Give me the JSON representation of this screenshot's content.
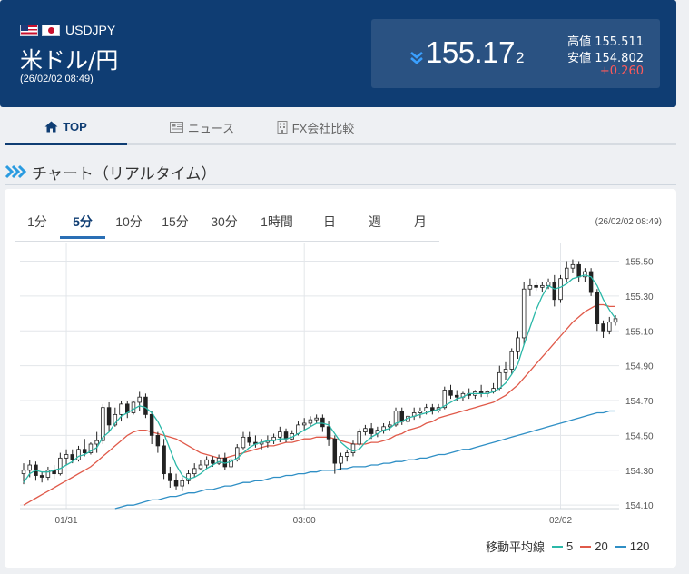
{
  "header": {
    "pair_code": "USDJPY",
    "pair_name": "米ドル/円",
    "datetime": "(26/02/02 08:49)",
    "price_main": "155.17",
    "price_small": "2",
    "high_label": "高値",
    "high_value": "155.511",
    "low_label": "安値",
    "low_value": "154.802",
    "change": "+0.260"
  },
  "tabs": {
    "top": "TOP",
    "news": "ニュース",
    "fx": "FX会社比較"
  },
  "section": {
    "title": "チャート（リアルタイム）"
  },
  "periods": [
    "1分",
    "5分",
    "10分",
    "15分",
    "30分",
    "1時間",
    "日",
    "週",
    "月"
  ],
  "chart_time": "(26/02/02 08:49)",
  "legend": {
    "label": "移動平均線",
    "ma5": "5",
    "ma20": "20",
    "ma120": "120"
  },
  "colors": {
    "header_bg": "#0f3d73",
    "price_box": "#2a5282",
    "change_red": "#ff5a5a",
    "ma5": "#2bb8a8",
    "ma20": "#e05a4a",
    "ma120": "#2f8fc5"
  },
  "chart_data": {
    "type": "candlestick",
    "y_ticks": [
      "155.50",
      "155.30",
      "155.10",
      "154.90",
      "154.70",
      "154.50",
      "154.30",
      "154.10"
    ],
    "x_ticks": [
      "01/31",
      "03:00",
      "02/02"
    ],
    "ylim": [
      154.08,
      155.56
    ],
    "ohlc": [
      [
        154.28,
        154.34,
        154.22,
        154.3
      ],
      [
        154.3,
        154.36,
        154.26,
        154.33
      ],
      [
        154.33,
        154.35,
        154.24,
        154.27
      ],
      [
        154.27,
        154.29,
        154.23,
        154.26
      ],
      [
        154.26,
        154.32,
        154.24,
        154.3
      ],
      [
        154.3,
        154.33,
        154.25,
        154.28
      ],
      [
        154.28,
        154.4,
        154.27,
        154.37
      ],
      [
        154.37,
        154.42,
        154.33,
        154.39
      ],
      [
        154.39,
        154.42,
        154.34,
        154.36
      ],
      [
        154.36,
        154.44,
        154.35,
        154.42
      ],
      [
        154.42,
        154.48,
        154.38,
        154.4
      ],
      [
        154.4,
        154.46,
        154.39,
        154.45
      ],
      [
        154.45,
        154.52,
        154.4,
        154.47
      ],
      [
        154.47,
        154.68,
        154.45,
        154.66
      ],
      [
        154.66,
        154.69,
        154.52,
        154.56
      ],
      [
        154.56,
        154.66,
        154.55,
        154.62
      ],
      [
        154.62,
        154.7,
        154.58,
        154.68
      ],
      [
        154.68,
        154.7,
        154.6,
        154.63
      ],
      [
        154.63,
        154.7,
        154.62,
        154.69
      ],
      [
        154.69,
        154.75,
        154.64,
        154.72
      ],
      [
        154.72,
        154.74,
        154.6,
        154.62
      ],
      [
        154.62,
        154.64,
        154.45,
        154.5
      ],
      [
        154.5,
        154.52,
        154.4,
        154.44
      ],
      [
        154.44,
        154.48,
        154.25,
        154.28
      ],
      [
        154.28,
        154.32,
        154.2,
        154.24
      ],
      [
        154.24,
        154.28,
        154.19,
        154.21
      ],
      [
        154.21,
        154.26,
        154.18,
        154.24
      ],
      [
        154.24,
        154.3,
        154.22,
        154.28
      ],
      [
        154.28,
        154.34,
        154.26,
        154.31
      ],
      [
        154.31,
        154.36,
        154.3,
        154.33
      ],
      [
        154.33,
        154.38,
        154.31,
        154.36
      ],
      [
        154.36,
        154.38,
        154.32,
        154.34
      ],
      [
        154.34,
        154.39,
        154.33,
        154.37
      ],
      [
        154.37,
        154.4,
        154.3,
        154.32
      ],
      [
        154.32,
        154.38,
        154.31,
        154.36
      ],
      [
        154.36,
        154.45,
        154.35,
        154.43
      ],
      [
        154.43,
        154.52,
        154.42,
        154.49
      ],
      [
        154.49,
        154.52,
        154.44,
        154.46
      ],
      [
        154.46,
        154.5,
        154.43,
        154.45
      ],
      [
        154.45,
        154.48,
        154.42,
        154.46
      ],
      [
        154.46,
        154.5,
        154.43,
        154.47
      ],
      [
        154.47,
        154.51,
        154.45,
        154.49
      ],
      [
        154.49,
        154.55,
        154.46,
        154.52
      ],
      [
        154.52,
        154.54,
        154.46,
        154.48
      ],
      [
        154.48,
        154.53,
        154.47,
        154.51
      ],
      [
        154.51,
        154.58,
        154.5,
        154.56
      ],
      [
        154.56,
        154.6,
        154.53,
        154.57
      ],
      [
        154.57,
        154.61,
        154.55,
        154.59
      ],
      [
        154.59,
        154.62,
        154.57,
        154.6
      ],
      [
        154.6,
        154.62,
        154.52,
        154.55
      ],
      [
        154.55,
        154.58,
        154.44,
        154.48
      ],
      [
        154.48,
        154.5,
        154.28,
        154.34
      ],
      [
        154.34,
        154.4,
        154.3,
        154.38
      ],
      [
        154.38,
        154.42,
        154.35,
        154.4
      ],
      [
        154.4,
        154.47,
        154.38,
        154.45
      ],
      [
        154.45,
        154.54,
        154.44,
        154.52
      ],
      [
        154.52,
        154.56,
        154.5,
        154.54
      ],
      [
        154.54,
        154.57,
        154.48,
        154.51
      ],
      [
        154.51,
        154.55,
        154.49,
        154.53
      ],
      [
        154.53,
        154.57,
        154.51,
        154.55
      ],
      [
        154.55,
        154.58,
        154.53,
        154.56
      ],
      [
        154.56,
        154.66,
        154.55,
        154.64
      ],
      [
        154.64,
        154.66,
        154.56,
        154.58
      ],
      [
        154.58,
        154.62,
        154.56,
        154.61
      ],
      [
        154.61,
        154.66,
        154.59,
        154.63
      ],
      [
        154.63,
        154.66,
        154.6,
        154.64
      ],
      [
        154.64,
        154.68,
        154.62,
        154.66
      ],
      [
        154.66,
        154.68,
        154.62,
        154.64
      ],
      [
        154.64,
        154.68,
        154.63,
        154.66
      ],
      [
        154.66,
        154.78,
        154.65,
        154.76
      ],
      [
        154.76,
        154.79,
        154.71,
        154.73
      ],
      [
        154.73,
        154.76,
        154.7,
        154.72
      ],
      [
        154.72,
        154.75,
        154.7,
        154.74
      ],
      [
        154.74,
        154.77,
        154.71,
        154.73
      ],
      [
        154.73,
        154.76,
        154.71,
        154.75
      ],
      [
        154.75,
        154.79,
        154.72,
        154.74
      ],
      [
        154.74,
        154.76,
        154.72,
        154.75
      ],
      [
        154.75,
        154.8,
        154.74,
        154.77
      ],
      [
        154.77,
        154.9,
        154.76,
        154.86
      ],
      [
        154.86,
        154.92,
        154.82,
        154.88
      ],
      [
        154.88,
        155.0,
        154.85,
        154.98
      ],
      [
        154.98,
        155.1,
        154.94,
        155.06
      ],
      [
        155.06,
        155.38,
        155.02,
        155.34
      ],
      [
        155.34,
        155.4,
        155.3,
        155.36
      ],
      [
        155.36,
        155.38,
        155.33,
        155.35
      ],
      [
        155.35,
        155.38,
        155.32,
        155.36
      ],
      [
        155.36,
        155.4,
        155.34,
        155.38
      ],
      [
        155.38,
        155.42,
        155.24,
        155.28
      ],
      [
        155.28,
        155.42,
        155.26,
        155.4
      ],
      [
        155.4,
        155.5,
        155.38,
        155.46
      ],
      [
        155.46,
        155.51,
        155.43,
        155.48
      ],
      [
        155.48,
        155.5,
        155.38,
        155.41
      ],
      [
        155.41,
        155.46,
        155.38,
        155.44
      ],
      [
        155.44,
        155.46,
        155.3,
        155.32
      ],
      [
        155.32,
        155.34,
        155.1,
        155.14
      ],
      [
        155.14,
        155.16,
        155.06,
        155.1
      ],
      [
        155.1,
        155.18,
        155.08,
        155.15
      ],
      [
        155.15,
        155.19,
        155.13,
        155.17
      ]
    ],
    "ma5": [
      154.23,
      154.28,
      154.3,
      154.29,
      154.29,
      154.3,
      154.31,
      154.33,
      154.35,
      154.38,
      154.39,
      154.41,
      154.43,
      154.49,
      154.52,
      154.57,
      154.61,
      154.63,
      154.65,
      154.67,
      154.66,
      154.63,
      154.58,
      154.51,
      154.42,
      154.33,
      154.27,
      154.25,
      154.26,
      154.28,
      154.31,
      154.33,
      154.35,
      154.34,
      154.35,
      154.37,
      154.4,
      154.43,
      154.45,
      154.46,
      154.47,
      154.47,
      154.48,
      154.48,
      154.49,
      154.51,
      154.53,
      154.55,
      154.57,
      154.57,
      154.56,
      154.51,
      154.46,
      154.43,
      154.41,
      154.42,
      154.46,
      154.49,
      154.51,
      154.53,
      154.54,
      154.57,
      154.58,
      154.6,
      154.61,
      154.62,
      154.63,
      154.64,
      154.65,
      154.67,
      154.69,
      154.71,
      154.72,
      154.74,
      154.74,
      154.74,
      154.74,
      154.75,
      154.77,
      154.8,
      154.85,
      154.91,
      155.02,
      155.12,
      155.22,
      155.3,
      155.36,
      155.34,
      155.35,
      155.37,
      155.4,
      155.41,
      155.42,
      155.41,
      155.36,
      155.28,
      155.22,
      155.17
    ],
    "ma20": [
      154.1,
      154.12,
      154.14,
      154.16,
      154.18,
      154.2,
      154.22,
      154.24,
      154.26,
      154.28,
      154.3,
      154.32,
      154.35,
      154.38,
      154.41,
      154.44,
      154.47,
      154.5,
      154.52,
      154.53,
      154.53,
      154.52,
      154.51,
      154.5,
      154.49,
      154.48,
      154.46,
      154.44,
      154.42,
      154.4,
      154.39,
      154.38,
      154.37,
      154.37,
      154.38,
      154.39,
      154.4,
      154.41,
      154.42,
      154.43,
      154.44,
      154.44,
      154.45,
      154.46,
      154.46,
      154.47,
      154.48,
      154.48,
      154.49,
      154.49,
      154.49,
      154.48,
      154.47,
      154.46,
      154.45,
      154.45,
      154.45,
      154.46,
      154.46,
      154.47,
      154.48,
      154.5,
      154.51,
      154.53,
      154.54,
      154.55,
      154.57,
      154.58,
      154.6,
      154.61,
      154.62,
      154.63,
      154.64,
      154.65,
      154.66,
      154.67,
      154.68,
      154.69,
      154.71,
      154.73,
      154.76,
      154.79,
      154.83,
      154.87,
      154.91,
      154.95,
      154.99,
      155.03,
      155.07,
      155.11,
      155.15,
      155.18,
      155.21,
      155.23,
      155.25,
      155.25,
      155.24,
      155.24
    ],
    "ma120": [
      null,
      null,
      null,
      null,
      null,
      null,
      null,
      null,
      null,
      null,
      null,
      null,
      null,
      null,
      null,
      154.08,
      154.09,
      154.1,
      154.1,
      154.11,
      154.12,
      154.13,
      154.13,
      154.14,
      154.15,
      154.15,
      154.16,
      154.17,
      154.17,
      154.18,
      154.19,
      154.19,
      154.2,
      154.21,
      154.21,
      154.22,
      154.23,
      154.23,
      154.24,
      154.24,
      154.25,
      154.26,
      154.26,
      154.27,
      154.27,
      154.28,
      154.28,
      154.29,
      154.29,
      154.3,
      154.3,
      154.3,
      154.31,
      154.31,
      154.32,
      154.32,
      154.32,
      154.33,
      154.33,
      154.34,
      154.34,
      154.35,
      154.35,
      154.36,
      154.36,
      154.37,
      154.37,
      154.38,
      154.39,
      154.39,
      154.4,
      154.41,
      154.42,
      154.42,
      154.43,
      154.44,
      154.45,
      154.46,
      154.47,
      154.48,
      154.49,
      154.5,
      154.51,
      154.52,
      154.53,
      154.54,
      154.55,
      154.56,
      154.57,
      154.58,
      154.59,
      154.6,
      154.61,
      154.62,
      154.63,
      154.63,
      154.64,
      154.64
    ]
  }
}
